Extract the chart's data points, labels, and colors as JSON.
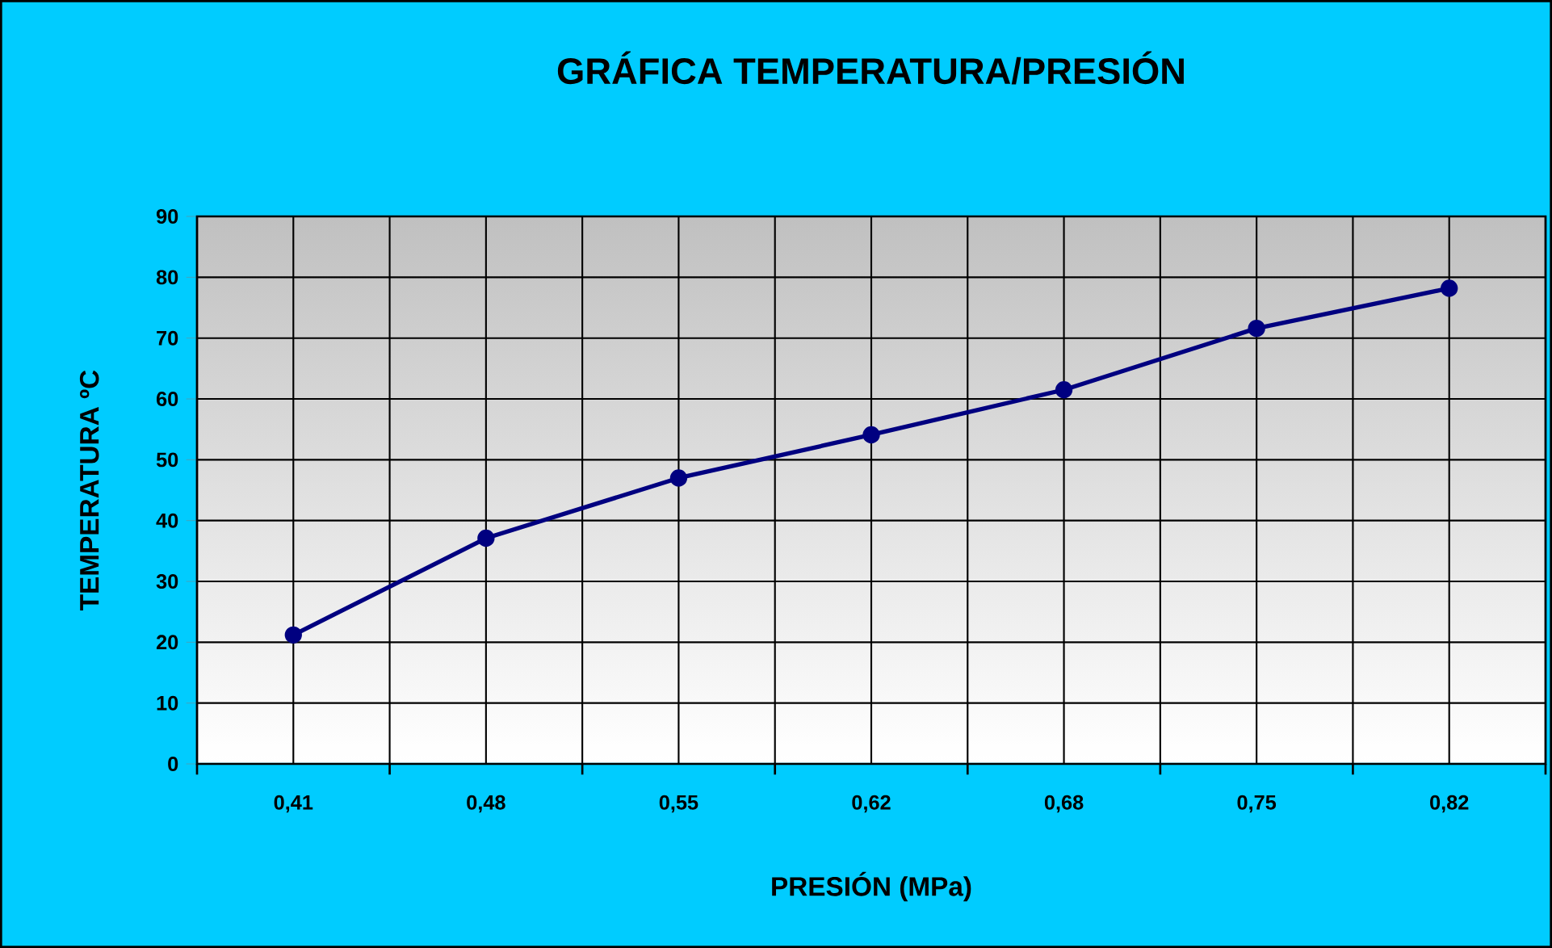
{
  "chart_data": {
    "type": "line",
    "title": "GRÁFICA TEMPERATURA/PRESIÓN",
    "xlabel": "PRESIÓN (MPa)",
    "ylabel": "TEMPERATURA ºC",
    "categories": [
      "0,41",
      "0,48",
      "0,55",
      "0,62",
      "0,68",
      "0,75",
      "0,82"
    ],
    "series": [
      {
        "color": "#000080",
        "values": [
          21.2,
          37.1,
          47,
          54.1,
          61.5,
          71.6,
          78.2
        ]
      }
    ],
    "ylim": [
      0,
      90
    ],
    "yticks": [
      0,
      10,
      20,
      30,
      40,
      50,
      60,
      70,
      80,
      90
    ],
    "grid": true,
    "marker": "circle",
    "line_style": "solid"
  }
}
